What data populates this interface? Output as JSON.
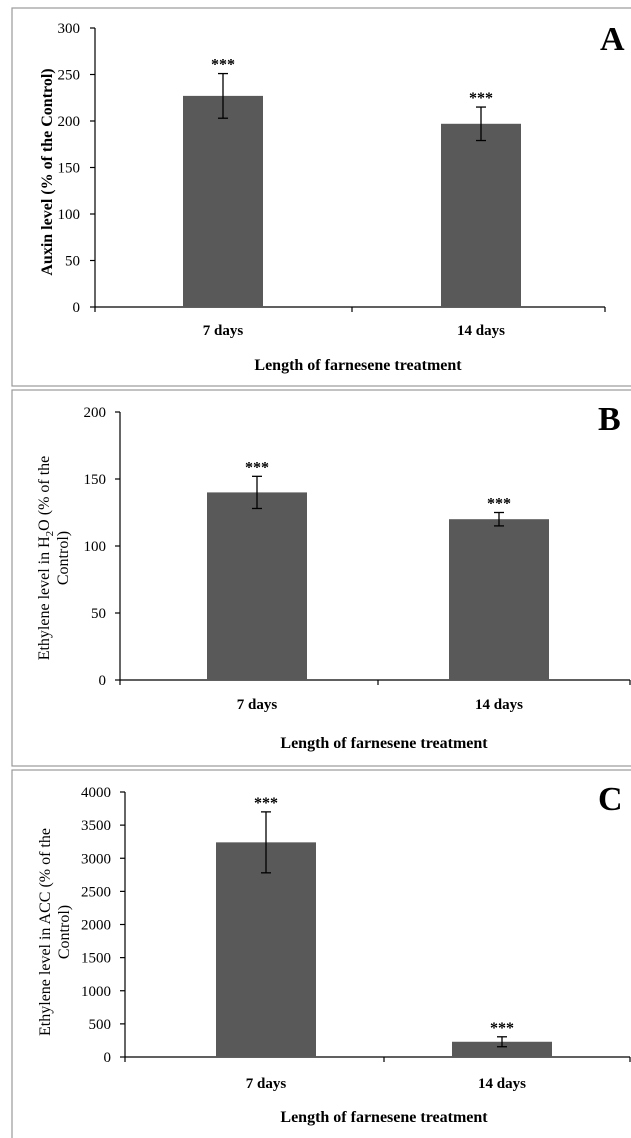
{
  "chart_data": [
    {
      "type": "bar",
      "panel_label": "A",
      "categories": [
        "7 days",
        "14 days"
      ],
      "values": [
        227,
        197
      ],
      "errors": [
        24,
        18
      ],
      "annotations": [
        "***",
        "***"
      ],
      "xlabel": "Length of farnesene treatment",
      "ylabel_lines": [
        "Auxin level (% of the Control)"
      ],
      "ylim": [
        0,
        300
      ],
      "yticks": [
        "0",
        "50",
        "100",
        "150",
        "200",
        "250",
        "300"
      ],
      "bar_color": "#595959",
      "gridlines": false
    },
    {
      "type": "bar",
      "panel_label": "B",
      "categories": [
        "7 days",
        "14 days"
      ],
      "values": [
        140,
        120
      ],
      "errors": [
        12,
        5
      ],
      "annotations": [
        "***",
        "***"
      ],
      "xlabel": "Length of farnesene treatment",
      "ylabel_lines": [
        "Ethylene level in H2O (% of the",
        "Control)"
      ],
      "ylim": [
        0,
        200
      ],
      "yticks": [
        "0",
        "50",
        "100",
        "150",
        "200"
      ],
      "bar_color": "#595959",
      "gridlines": false
    },
    {
      "type": "bar",
      "panel_label": "C",
      "categories": [
        "7 days",
        "14 days"
      ],
      "values": [
        3240,
        230
      ],
      "errors": [
        460,
        75
      ],
      "annotations": [
        "***",
        "***"
      ],
      "xlabel": "Length of farnesene treatment",
      "ylabel_lines": [
        "Ethylene level in ACC (% of the",
        "Control)"
      ],
      "ylim": [
        0,
        4000
      ],
      "yticks": [
        "0",
        "500",
        "1000",
        "1500",
        "2000",
        "2500",
        "3000",
        "3500",
        "4000"
      ],
      "bar_color": "#595959",
      "gridlines": false
    }
  ]
}
